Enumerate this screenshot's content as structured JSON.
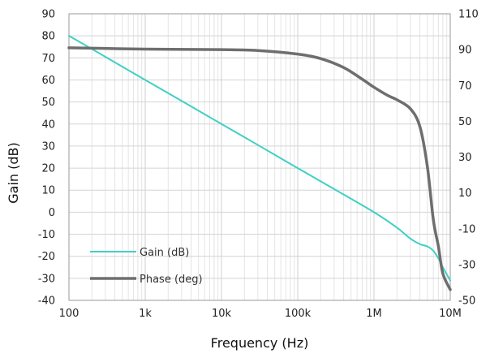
{
  "chart_data": {
    "type": "line",
    "title": "",
    "xlabel": "Frequency (Hz)",
    "ylabel": "Gain (dB)",
    "y2label": "",
    "x_scale": "log",
    "xlim": [
      100,
      10000000
    ],
    "ylim": [
      -40,
      90
    ],
    "y2lim": [
      -50,
      110
    ],
    "grid": true,
    "legend_position": "bottom-left",
    "x_ticks": [
      {
        "value": 100,
        "label": "100"
      },
      {
        "value": 1000,
        "label": "1k"
      },
      {
        "value": 10000,
        "label": "10k"
      },
      {
        "value": 100000,
        "label": "100k"
      },
      {
        "value": 1000000,
        "label": "1M"
      },
      {
        "value": 10000000,
        "label": "10M"
      }
    ],
    "y_ticks": [
      {
        "value": 90,
        "label": "90"
      },
      {
        "value": 80,
        "label": "80"
      },
      {
        "value": 70,
        "label": "70"
      },
      {
        "value": 60,
        "label": "60"
      },
      {
        "value": 50,
        "label": "50"
      },
      {
        "value": 40,
        "label": "40"
      },
      {
        "value": 30,
        "label": "30"
      },
      {
        "value": 20,
        "label": "20"
      },
      {
        "value": 10,
        "label": "10"
      },
      {
        "value": 0,
        "label": "0"
      },
      {
        "value": -10,
        "label": "-10"
      },
      {
        "value": -20,
        "label": "-20"
      },
      {
        "value": -30,
        "label": "-30"
      },
      {
        "value": -40,
        "label": "-40"
      }
    ],
    "y2_ticks": [
      {
        "value": 110,
        "label": "110"
      },
      {
        "value": 90,
        "label": "90"
      },
      {
        "value": 70,
        "label": "70"
      },
      {
        "value": 50,
        "label": "50"
      },
      {
        "value": 30,
        "label": "30"
      },
      {
        "value": 10,
        "label": "10"
      },
      {
        "value": -10,
        "label": "-10"
      },
      {
        "value": -30,
        "label": "-30"
      },
      {
        "value": -50,
        "label": "-50"
      }
    ],
    "series": [
      {
        "name": "Gain (dB)",
        "axis": "left",
        "color": "#40D0C4",
        "x": [
          100,
          300,
          1000,
          3000,
          10000,
          30000,
          100000,
          300000,
          1000000,
          2000000,
          3000000,
          4000000,
          5000000,
          6000000,
          7000000,
          8000000,
          10000000
        ],
        "y": [
          80,
          70.5,
          60,
          50.5,
          40,
          30.5,
          20,
          10.5,
          0,
          -7,
          -12,
          -14.5,
          -15.5,
          -17.5,
          -21,
          -25,
          -31
        ]
      },
      {
        "name": "Phase (deg)",
        "axis": "right",
        "color": "#6E6E6E",
        "x": [
          100,
          1000,
          10000,
          30000,
          100000,
          200000,
          400000,
          700000,
          1000000,
          1500000,
          2000000,
          3000000,
          4000000,
          5000000,
          6000000,
          7000000,
          8000000,
          10000000
        ],
        "y": [
          91,
          90.3,
          90,
          89.5,
          87.5,
          85,
          80,
          73.5,
          69,
          64.5,
          62,
          57,
          47,
          25,
          -5,
          -20,
          -35,
          -44
        ]
      }
    ]
  }
}
